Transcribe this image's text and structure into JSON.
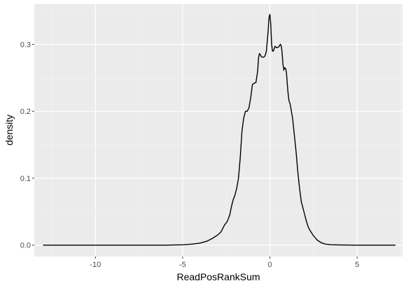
{
  "chart_data": {
    "type": "line",
    "title": "",
    "xlabel": "ReadPosRankSum",
    "ylabel": "density",
    "xlim": [
      -13.5,
      7.6
    ],
    "ylim": [
      -0.017,
      0.36
    ],
    "x_ticks": [
      -10,
      -5,
      0,
      5
    ],
    "x_tick_labels": [
      "-10",
      "-5",
      "0",
      "5"
    ],
    "y_ticks": [
      0.0,
      0.1,
      0.2,
      0.3
    ],
    "y_tick_labels": [
      "0.0",
      "0.1",
      "0.2",
      "0.3"
    ],
    "grid": true,
    "legend": "none",
    "colors": {
      "panel_background": "#ebebeb",
      "grid_major": "#ffffff",
      "grid_minor": "#f5f5f5",
      "line": "#000000"
    },
    "series": [
      {
        "x": [
          -13.0,
          -10.0,
          -8.0,
          -6.0,
          -5.0,
          -4.5,
          -4.0,
          -3.6,
          -3.3,
          -3.0,
          -2.8,
          -2.6,
          -2.45,
          -2.3,
          -2.2,
          -2.1,
          -2.0,
          -1.9,
          -1.8,
          -1.7,
          -1.6,
          -1.5,
          -1.4,
          -1.3,
          -1.2,
          -1.1,
          -1.0,
          -0.9,
          -0.8,
          -0.7,
          -0.65,
          -0.6,
          -0.55,
          -0.5,
          -0.45,
          -0.4,
          -0.35,
          -0.3,
          -0.25,
          -0.2,
          -0.15,
          -0.1,
          -0.05,
          0.0,
          0.05,
          0.1,
          0.15,
          0.2,
          0.3,
          0.35,
          0.4,
          0.5,
          0.6,
          0.65,
          0.7,
          0.75,
          0.8,
          0.85,
          0.9,
          0.95,
          1.0,
          1.05,
          1.1,
          1.15,
          1.2,
          1.3,
          1.4,
          1.5,
          1.6,
          1.7,
          1.8,
          1.9,
          2.0,
          2.1,
          2.2,
          2.3,
          2.4,
          2.5,
          2.6,
          2.7,
          2.8,
          3.0,
          3.2,
          3.5,
          4.0,
          5.0,
          6.0,
          7.2
        ],
        "y": [
          0.0,
          0.0,
          0.0,
          0.0,
          0.0006,
          0.0015,
          0.003,
          0.006,
          0.01,
          0.015,
          0.02,
          0.03,
          0.035,
          0.045,
          0.058,
          0.068,
          0.075,
          0.085,
          0.1,
          0.13,
          0.17,
          0.19,
          0.2,
          0.2,
          0.205,
          0.22,
          0.24,
          0.242,
          0.243,
          0.26,
          0.28,
          0.286,
          0.285,
          0.282,
          0.281,
          0.281,
          0.281,
          0.282,
          0.285,
          0.29,
          0.305,
          0.32,
          0.34,
          0.345,
          0.33,
          0.3,
          0.29,
          0.29,
          0.297,
          0.296,
          0.295,
          0.296,
          0.3,
          0.298,
          0.288,
          0.27,
          0.262,
          0.265,
          0.264,
          0.258,
          0.24,
          0.225,
          0.215,
          0.212,
          0.205,
          0.19,
          0.165,
          0.14,
          0.11,
          0.085,
          0.065,
          0.055,
          0.045,
          0.035,
          0.027,
          0.022,
          0.018,
          0.014,
          0.011,
          0.008,
          0.006,
          0.003,
          0.0015,
          0.0007,
          0.0003,
          0.0,
          0.0,
          0.0
        ]
      }
    ]
  }
}
